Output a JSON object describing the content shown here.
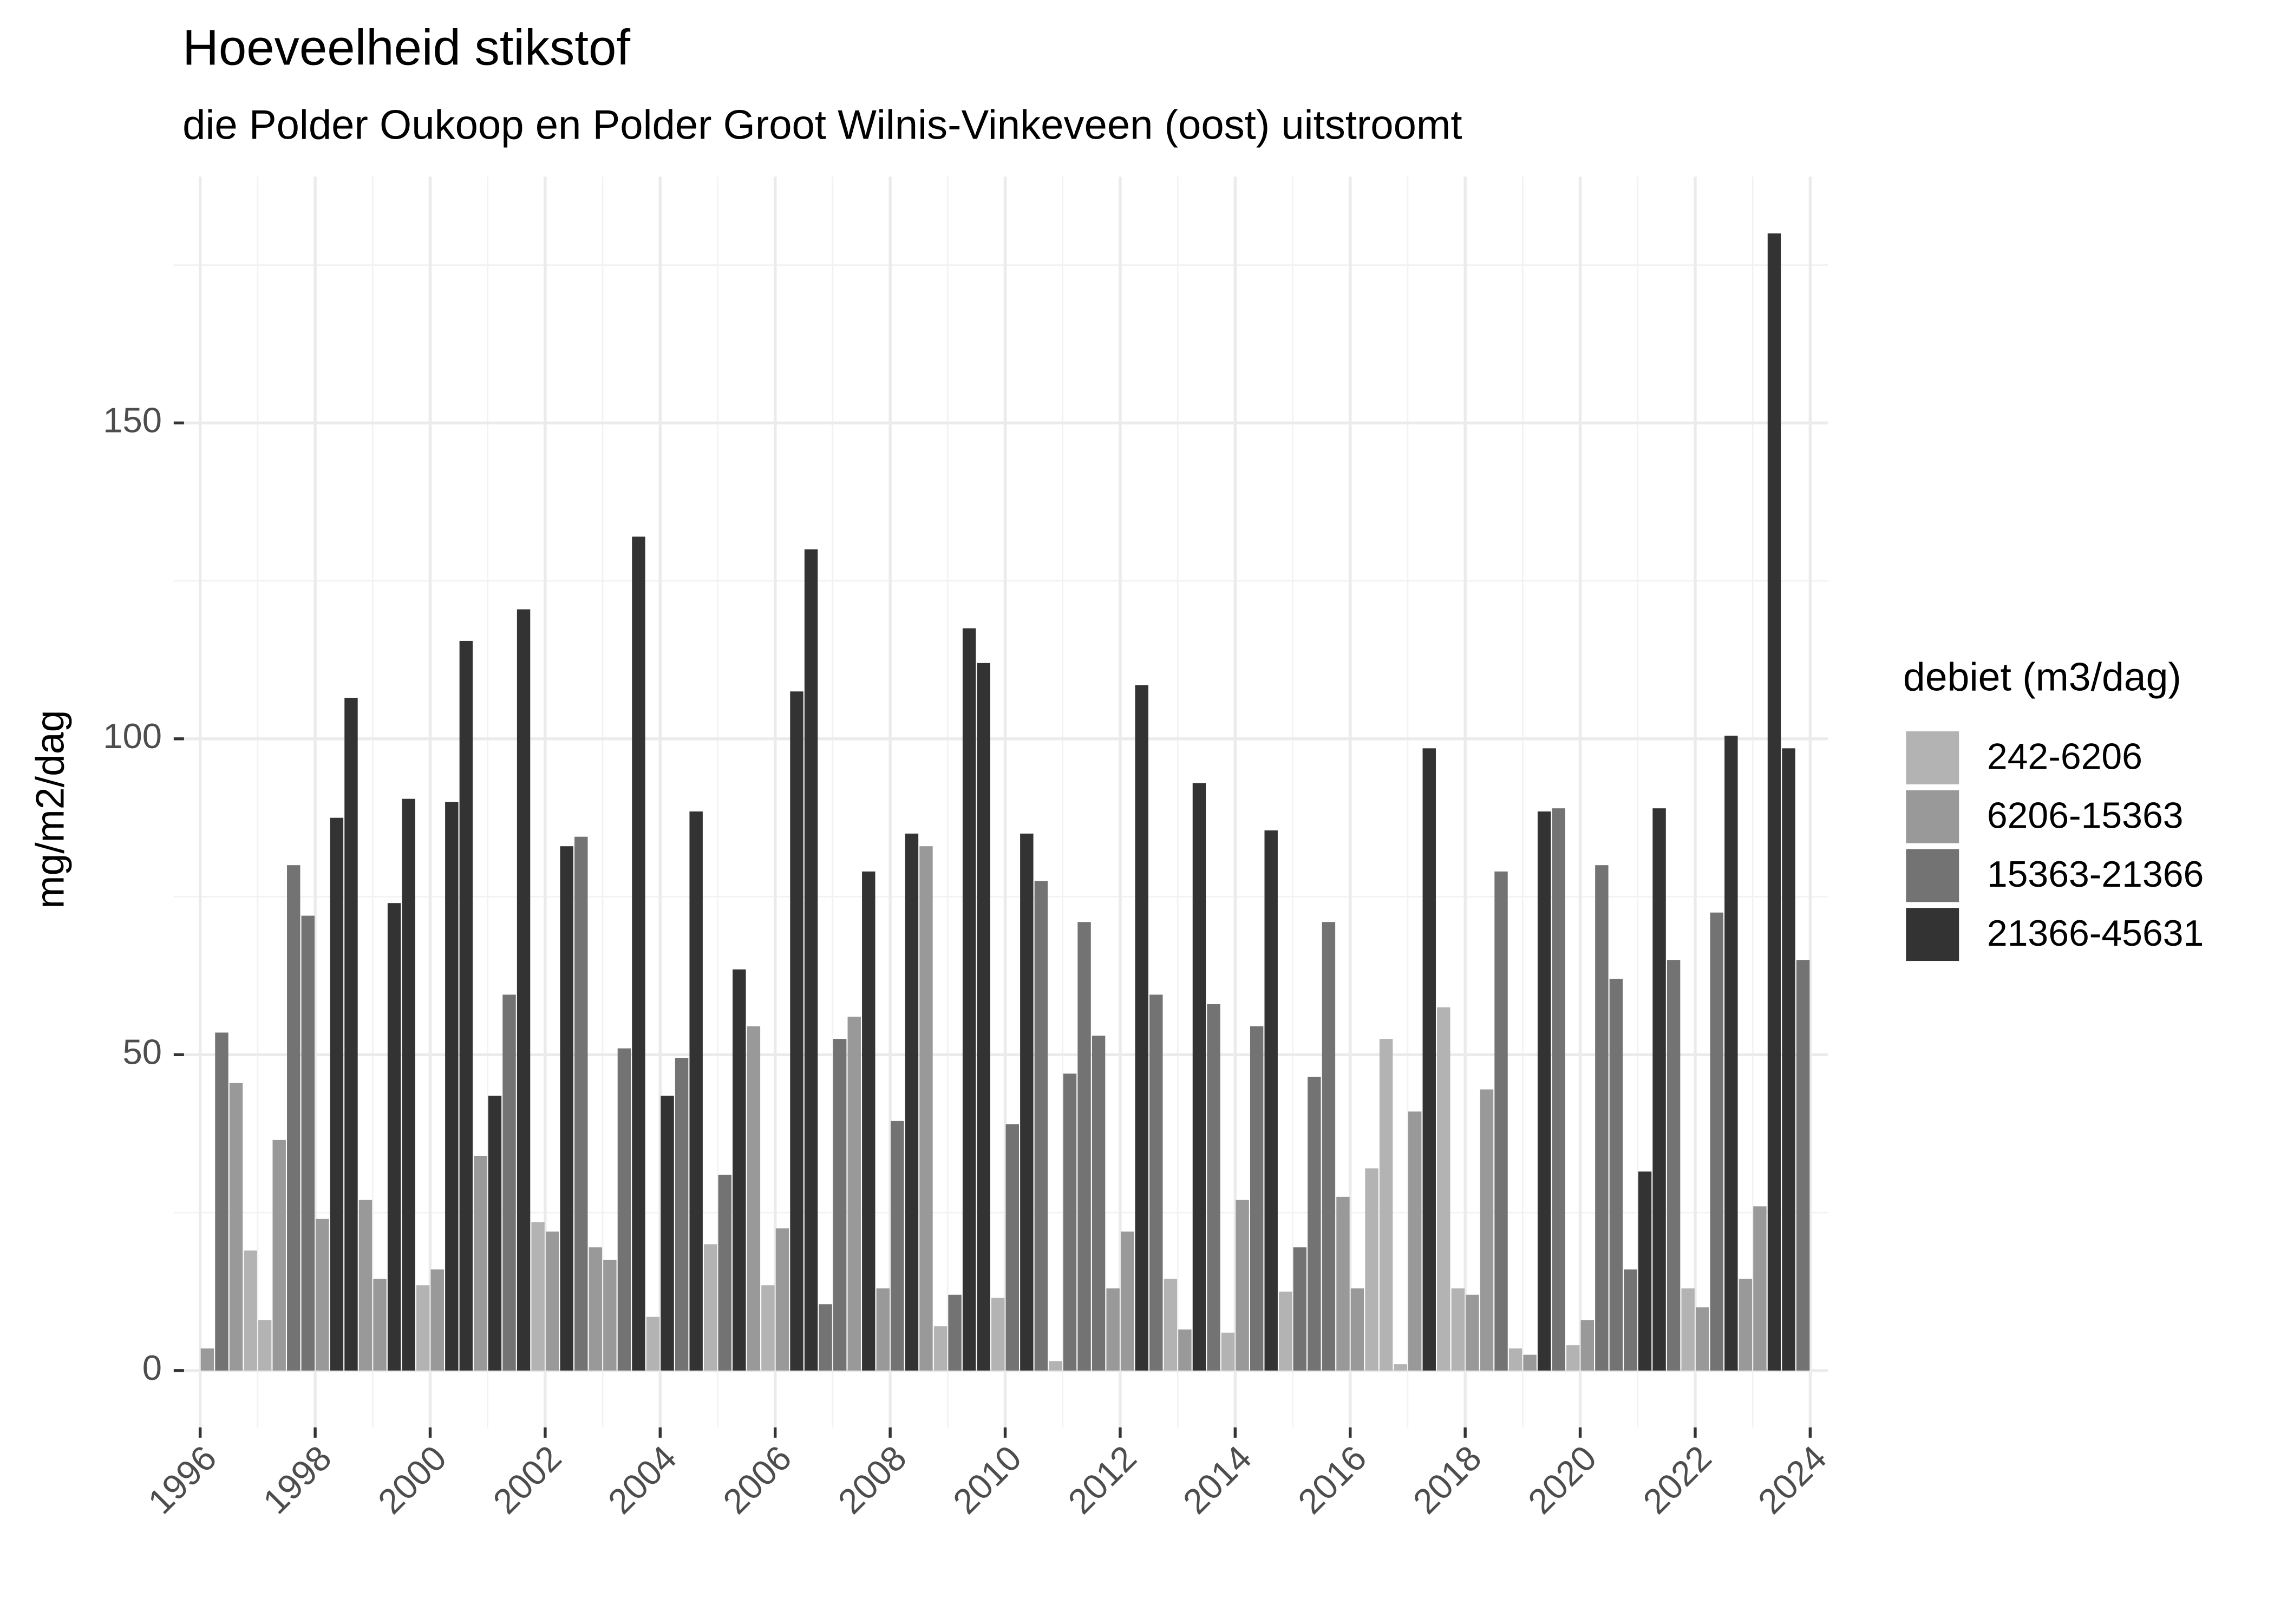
{
  "chart_data": {
    "type": "bar",
    "title": "Hoeveelheid stikstof",
    "subtitle": "die Polder Oukoop en Polder Groot Wilnis-Vinkeveen (oost) uitstroomt",
    "ylabel": "mg/m2/dag",
    "legend_title": "debiet (m3/dag)",
    "legend": "right",
    "grid": true,
    "xlim": [
      1995.54,
      2024.31
    ],
    "xticks": [
      1996,
      1998,
      2000,
      2002,
      2004,
      2006,
      2008,
      2010,
      2012,
      2014,
      2016,
      2018,
      2020,
      2022,
      2024
    ],
    "ylim": [
      -9,
      189
    ],
    "yticks": [
      0,
      50,
      100,
      150
    ],
    "series": [
      {
        "name": "242-6206",
        "color": "#b3b3b3",
        "x": [
          1996.875,
          1997.125,
          1999.875,
          2001.875,
          2003.875,
          2004.875,
          2005.875,
          2008.875,
          2009.875,
          2010.875,
          2012.875,
          2013.875,
          2014.875,
          2016.375,
          2016.625,
          2016.875,
          2017.625,
          2017.875,
          2018.875,
          2019.875,
          2021.875
        ],
        "values": [
          19,
          8,
          13.5,
          23.5,
          8.5,
          20,
          13.5,
          7,
          11.5,
          1.5,
          14.5,
          6,
          12.5,
          32,
          52.5,
          1,
          57.5,
          13,
          3.5,
          4,
          13
        ]
      },
      {
        "name": "6206-15363",
        "color": "#999999",
        "x": [
          1996.125,
          1996.625,
          1997.375,
          1998.125,
          1998.875,
          1999.125,
          2000.125,
          2000.875,
          2002.125,
          2002.875,
          2003.125,
          2005.625,
          2006.125,
          2007.375,
          2007.875,
          2008.625,
          2011.875,
          2012.125,
          2013.125,
          2014.125,
          2015.875,
          2016.125,
          2017.125,
          2018.125,
          2018.375,
          2019.125,
          2020.125,
          2022.125,
          2022.875,
          2023.125
        ],
        "values": [
          3.5,
          45.5,
          36.5,
          24,
          27,
          14.5,
          16,
          34,
          22,
          19.5,
          17.5,
          54.5,
          22.5,
          56,
          13,
          83,
          13,
          22,
          6.5,
          27,
          27.5,
          13,
          41,
          12,
          44.5,
          2.5,
          8,
          10,
          14.5,
          26
        ]
      },
      {
        "name": "15363-21366",
        "color": "#737373",
        "x": [
          1996.375,
          1997.625,
          1997.875,
          2001.375,
          2002.625,
          2003.375,
          2004.375,
          2005.125,
          2006.875,
          2007.125,
          2008.125,
          2009.125,
          2010.125,
          2010.625,
          2011.125,
          2011.375,
          2011.625,
          2012.625,
          2013.625,
          2014.375,
          2015.125,
          2015.375,
          2015.625,
          2018.625,
          2019.625,
          2020.375,
          2020.625,
          2020.875,
          2021.625,
          2022.375,
          2023.875
        ],
        "values": [
          53.5,
          80,
          72,
          59.5,
          84.5,
          51,
          49.5,
          31,
          10.5,
          52.5,
          39.5,
          12,
          39,
          77.5,
          47,
          71,
          53,
          59.5,
          58,
          54.5,
          19.5,
          46.5,
          71,
          79,
          89,
          80,
          62,
          16,
          65,
          72.5,
          65
        ]
      },
      {
        "name": "21366-45631",
        "color": "#333333",
        "x": [
          1998.375,
          1998.625,
          1999.375,
          1999.625,
          2000.375,
          2000.625,
          2001.125,
          2001.625,
          2002.375,
          2003.625,
          2004.125,
          2004.625,
          2005.375,
          2006.375,
          2006.625,
          2007.625,
          2008.375,
          2009.375,
          2009.625,
          2010.375,
          2012.375,
          2013.375,
          2014.625,
          2017.375,
          2019.375,
          2021.125,
          2021.375,
          2022.625,
          2023.375,
          2023.625
        ],
        "values": [
          87.5,
          106.5,
          74,
          90.5,
          90,
          115.5,
          43.5,
          120.5,
          83,
          132,
          43.5,
          88.5,
          63.5,
          107.5,
          130,
          79,
          85,
          117.5,
          112,
          85,
          108.5,
          93,
          85.5,
          98.5,
          88.5,
          31.5,
          89,
          100.5,
          180,
          98.5
        ]
      }
    ]
  }
}
